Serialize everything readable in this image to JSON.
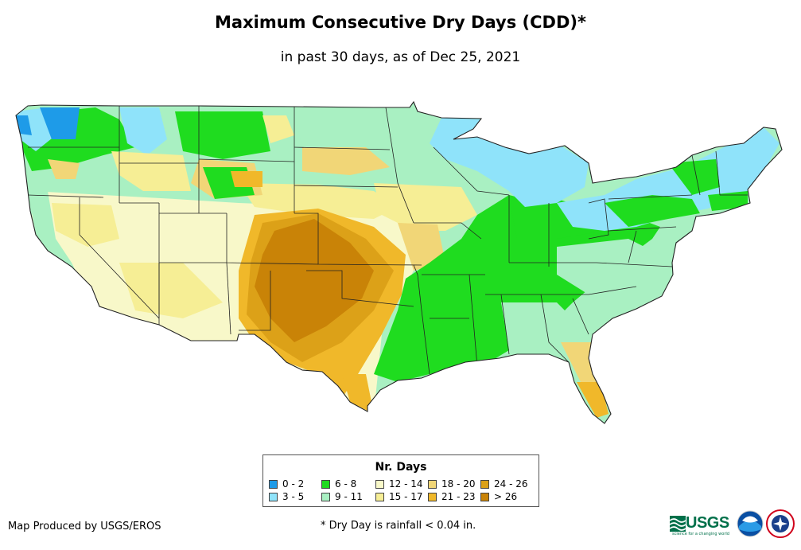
{
  "title": "Maximum Consecutive Dry Days (CDD)*",
  "subtitle": "in past 30 days, as of Dec 25, 2021",
  "legend": {
    "title": "Nr. Days",
    "items": [
      {
        "label": "0 - 2",
        "color": "#1e9be8"
      },
      {
        "label": "3 - 5",
        "color": "#8fe3fa"
      },
      {
        "label": "6 - 8",
        "color": "#1fdc1f"
      },
      {
        "label": "9 - 11",
        "color": "#a9f0c2"
      },
      {
        "label": "12 - 14",
        "color": "#f8f8c9"
      },
      {
        "label": "15 - 17",
        "color": "#f6ee95"
      },
      {
        "label": "18 - 20",
        "color": "#f1d677"
      },
      {
        "label": "21 - 23",
        "color": "#f0b82a"
      },
      {
        "label": "24 - 26",
        "color": "#dca118"
      },
      {
        "label": "> 26",
        "color": "#c98307"
      }
    ]
  },
  "footer": {
    "producer": "Map Produced by USGS/EROS",
    "note": "* Dry Day is rainfall < 0.04 in."
  },
  "logos": {
    "usgs": "USGS",
    "usgs_tagline": "science for a changing world",
    "noaa": "noaa-logo",
    "nws": "nws-logo"
  }
}
